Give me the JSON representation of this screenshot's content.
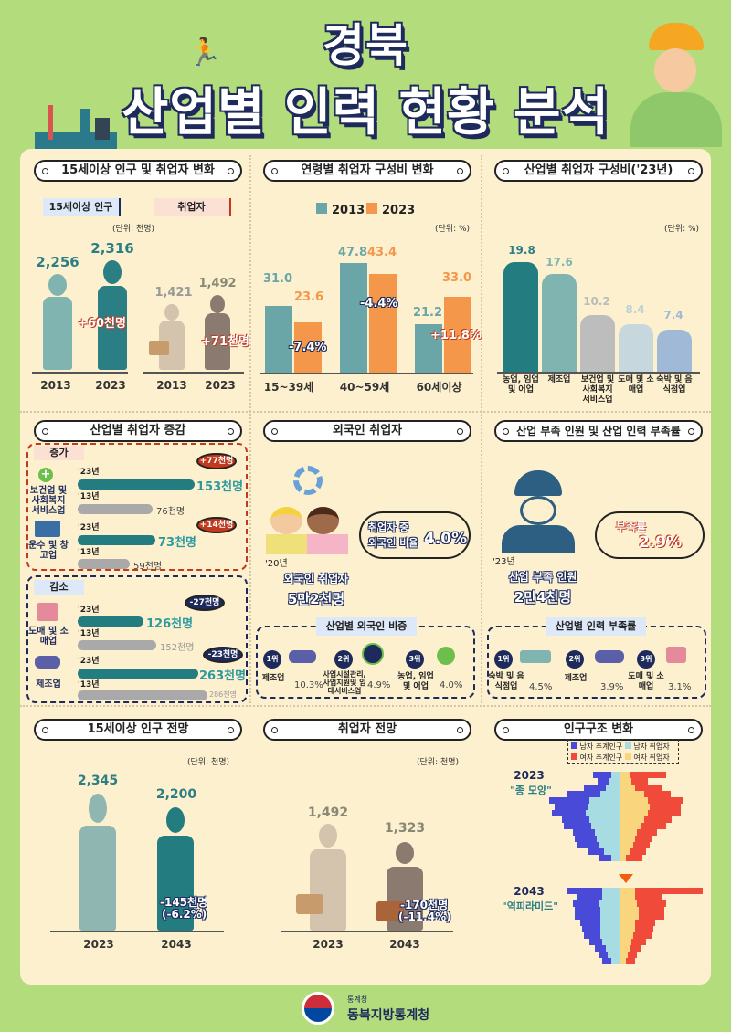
{
  "header": {
    "title_line1": "경북",
    "title_line2": "산업별 인력 현황 분석"
  },
  "sec1": {
    "title": "15세이상 인구 및 취업자 변화",
    "label_pop": "15세이상 인구",
    "label_emp": "취업자",
    "unit": "(단위: 천명)",
    "pop": [
      {
        "year": "2013",
        "value": "2,256"
      },
      {
        "year": "2023",
        "value": "2,316"
      }
    ],
    "pop_change": "+60천명",
    "emp": [
      {
        "year": "2013",
        "value": "1,421"
      },
      {
        "year": "2023",
        "value": "1,492"
      }
    ],
    "emp_change": "+71천명"
  },
  "sec2": {
    "title": "연령별 취업자 구성비 변화",
    "legend": [
      "2013",
      "2023"
    ],
    "unit": "(단위: %)",
    "groups": [
      {
        "label": "15~39세",
        "v2013": "31.0",
        "v2023": "23.6",
        "change": "-7.4%"
      },
      {
        "label": "40~59세",
        "v2013": "47.8",
        "v2023": "43.4",
        "change": "-4.4%"
      },
      {
        "label": "60세이상",
        "v2013": "21.2",
        "v2023": "33.0",
        "change": "+11.8%"
      }
    ]
  },
  "sec3": {
    "title": "산업별 취업자 구성비('23년)",
    "unit": "(단위: %)",
    "bars": [
      {
        "label": "농업, 임업 및 어업",
        "value": "19.8"
      },
      {
        "label": "제조업",
        "value": "17.6"
      },
      {
        "label": "보건업 및 사회복지 서비스업",
        "value": "10.2"
      },
      {
        "label": "도매 및 소매업",
        "value": "8.4"
      },
      {
        "label": "숙박 및 음식점업",
        "value": "7.4"
      }
    ]
  },
  "sec4": {
    "title": "산업별 취업자 증감",
    "inc_label": "증가",
    "dec_label": "감소",
    "y23": "'23년",
    "y13": "'13년",
    "items": [
      {
        "name": "보건업 및 사회복지 서비스업",
        "v23": "153천명",
        "v13": "76천명",
        "diff": "+77천명"
      },
      {
        "name": "운수 및 창고업",
        "v23": "73천명",
        "v13": "59천명",
        "diff": "+14천명"
      },
      {
        "name": "도매 및 소매업",
        "v23": "126천명",
        "v13": "152천명",
        "diff": "-27천명"
      },
      {
        "name": "제조업",
        "v23": "263천명",
        "v13": "286천명",
        "diff": "-23천명"
      }
    ]
  },
  "sec5": {
    "title": "외국인 취업자",
    "year": "'20년",
    "label": "외국인 취업자",
    "value": "5만2천명",
    "bubble_line1": "취업자 중",
    "bubble_line2": "외국인 비율",
    "bubble_value": "4.0%",
    "sub_title": "산업별 외국인 비중",
    "ranks": [
      {
        "rank": "1위",
        "name": "제조업",
        "pct": "10.3%"
      },
      {
        "rank": "2위",
        "name": "사업시설관리, 사업지원및 임대서비스업",
        "pct": "4.9%"
      },
      {
        "rank": "3위",
        "name": "농업, 임업 및 어업",
        "pct": "4.0%"
      }
    ]
  },
  "sec6": {
    "title": "산업 부족 인원 및 산업 인력 부족률",
    "year": "'23년",
    "label": "산업 부족 인원",
    "value": "2만4천명",
    "bubble_label": "부족률",
    "bubble_value": "2.9%",
    "sub_title": "산업별 인력 부족률",
    "ranks": [
      {
        "rank": "1위",
        "name": "숙박 및 음식점업",
        "pct": "4.5%"
      },
      {
        "rank": "2위",
        "name": "제조업",
        "pct": "3.9%"
      },
      {
        "rank": "3위",
        "name": "도매 및 소매업",
        "pct": "3.1%"
      }
    ]
  },
  "sec7": {
    "title": "15세이상 인구 전망",
    "unit": "(단위: 천명)",
    "items": [
      {
        "year": "2023",
        "value": "2,345"
      },
      {
        "year": "2043",
        "value": "2,200"
      }
    ],
    "change": "-145천명",
    "change_pct": "(-6.2%)"
  },
  "sec8": {
    "title": "취업자 전망",
    "unit": "(단위: 천명)",
    "items": [
      {
        "year": "2023",
        "value": "1,492"
      },
      {
        "year": "2043",
        "value": "1,323"
      }
    ],
    "change": "-170천명",
    "change_pct": "(-11.4%)"
  },
  "sec9": {
    "title": "인구구조 변화",
    "legend": [
      "남자 추계인구",
      "남자 취업자",
      "여자 추계인구",
      "여자 취업자"
    ],
    "y2023": "2023",
    "shape2023": "\"종 모양\"",
    "y2043": "2043",
    "shape2043": "\"역피라미드\""
  },
  "footer": {
    "org_small": "통계청",
    "org": "동북지방통계청"
  },
  "colors": {
    "teal": "#2b7e84",
    "teal_light": "#7fb4b0",
    "orange": "#f5974a",
    "navy": "#1d2a5b",
    "red": "#c23a1e",
    "bg": "#fdf0cf",
    "green": "#b3dd7c"
  },
  "chart_data": [
    {
      "type": "bar",
      "title": "15세이상 인구 및 취업자 변화",
      "ylabel": "천명",
      "categories": [
        "2013",
        "2023"
      ],
      "series": [
        {
          "name": "15세이상 인구",
          "values": [
            2256,
            2316
          ]
        },
        {
          "name": "취업자",
          "values": [
            1421,
            1492
          ]
        }
      ]
    },
    {
      "type": "bar",
      "title": "연령별 취업자 구성비 변화",
      "ylabel": "%",
      "categories": [
        "15~39세",
        "40~59세",
        "60세이상"
      ],
      "series": [
        {
          "name": "2013",
          "values": [
            31.0,
            47.8,
            21.2
          ]
        },
        {
          "name": "2023",
          "values": [
            23.6,
            43.4,
            33.0
          ]
        }
      ]
    },
    {
      "type": "bar",
      "title": "산업별 취업자 구성비('23년)",
      "ylabel": "%",
      "categories": [
        "농업, 임업 및 어업",
        "제조업",
        "보건업 및 사회복지 서비스업",
        "도매 및 소매업",
        "숙박 및 음식점업"
      ],
      "values": [
        19.8,
        17.6,
        10.2,
        8.4,
        7.4
      ]
    },
    {
      "type": "bar",
      "title": "산업별 취업자 증감",
      "ylabel": "천명",
      "categories": [
        "보건업 및 사회복지 서비스업",
        "운수 및 창고업",
        "도매 및 소매업",
        "제조업"
      ],
      "series": [
        {
          "name": "'23년",
          "values": [
            153,
            73,
            126,
            263
          ]
        },
        {
          "name": "'13년",
          "values": [
            76,
            59,
            152,
            286
          ]
        }
      ]
    },
    {
      "type": "bar",
      "title": "15세이상 인구 전망",
      "categories": [
        "2023",
        "2043"
      ],
      "values": [
        2345,
        2200
      ]
    },
    {
      "type": "bar",
      "title": "취업자 전망",
      "categories": [
        "2023",
        "2043"
      ],
      "values": [
        1492,
        1323
      ]
    }
  ]
}
